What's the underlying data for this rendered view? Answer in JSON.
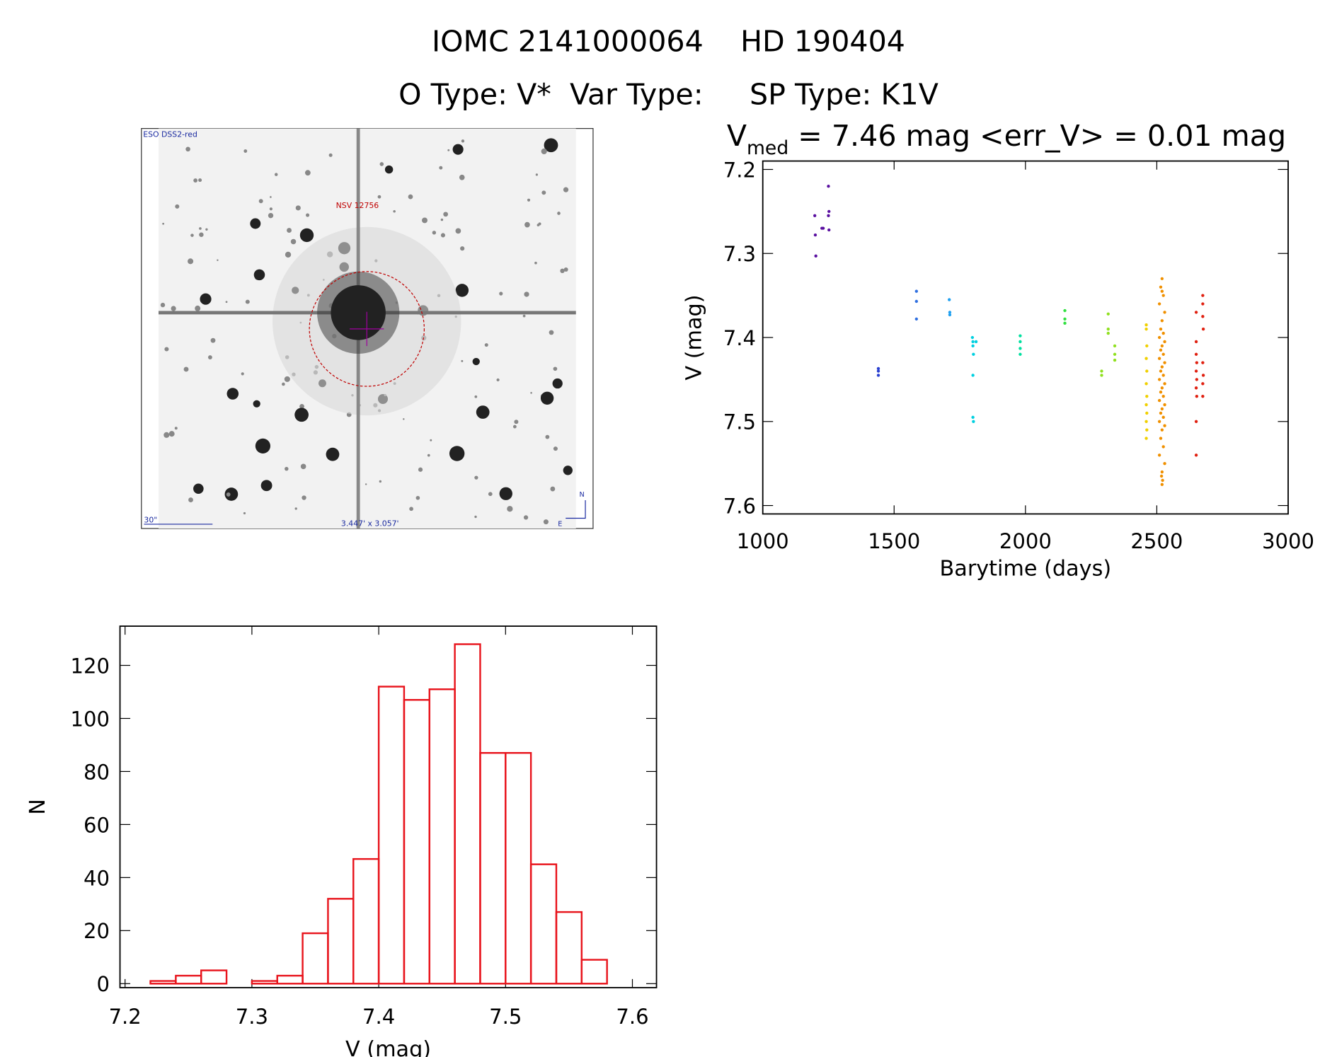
{
  "header": {
    "title": "IOMC 2141000064    HD 190404",
    "subtitle": "O Type: V*  Var Type:     SP Type: K1V"
  },
  "image": {
    "survey": "ESO DSS2-red",
    "target": "NSV 12756",
    "scale": "30\"",
    "size": "3.447' x 3.057'",
    "north": "N",
    "east": "E"
  },
  "chart_data": [
    {
      "type": "scatter",
      "title": {
        "main": "V",
        "subscript": "med",
        "rest": " = 7.46 mag <err_V> = 0.01 mag"
      },
      "xlabel": "Barytime (days)",
      "ylabel": "V (mag)",
      "xlim": [
        1000,
        3000
      ],
      "ylim": [
        7.19,
        7.61
      ],
      "y_inverted": true,
      "xticks": [
        1000,
        1500,
        2000,
        2500,
        3000
      ],
      "yticks": [
        7.2,
        7.3,
        7.4,
        7.5,
        7.6
      ],
      "series": [
        {
          "color": "#5a10a0",
          "x": [
            1198,
            1200,
            1202,
            1225,
            1230,
            1250,
            1252,
            1250,
            1252
          ],
          "y": [
            7.255,
            7.278,
            7.303,
            7.27,
            7.27,
            7.22,
            7.25,
            7.255,
            7.272
          ]
        },
        {
          "color": "#2a40d0",
          "x": [
            1440,
            1440,
            1440
          ],
          "y": [
            7.437,
            7.44,
            7.445
          ]
        },
        {
          "color": "#3070e0",
          "x": [
            1585,
            1585,
            1585
          ],
          "y": [
            7.345,
            7.357,
            7.378
          ]
        },
        {
          "color": "#20a0f0",
          "x": [
            1710,
            1712,
            1712
          ],
          "y": [
            7.355,
            7.37,
            7.373
          ]
        },
        {
          "color": "#00d0e0",
          "x": [
            1798,
            1800,
            1800,
            1802,
            1800,
            1800,
            1802,
            1812
          ],
          "y": [
            7.4,
            7.405,
            7.41,
            7.42,
            7.445,
            7.495,
            7.5,
            7.405
          ]
        },
        {
          "color": "#00e0a0",
          "x": [
            1980,
            1980,
            1980,
            1980
          ],
          "y": [
            7.398,
            7.405,
            7.413,
            7.42
          ]
        },
        {
          "color": "#30e040",
          "x": [
            2150,
            2150,
            2150
          ],
          "y": [
            7.368,
            7.378,
            7.383
          ]
        },
        {
          "color": "#90e020",
          "x": [
            2290,
            2290,
            2315,
            2315,
            2315,
            2340,
            2340,
            2340
          ],
          "y": [
            7.44,
            7.445,
            7.372,
            7.39,
            7.395,
            7.41,
            7.42,
            7.427
          ]
        },
        {
          "color": "#f0d000",
          "x": [
            2460,
            2460,
            2462,
            2460,
            2462,
            2460,
            2462,
            2460,
            2462,
            2460,
            2462,
            2460
          ],
          "y": [
            7.385,
            7.39,
            7.41,
            7.425,
            7.44,
            7.455,
            7.47,
            7.48,
            7.49,
            7.5,
            7.51,
            7.52
          ]
        },
        {
          "color": "#f09000",
          "x": [
            2520,
            2515,
            2525,
            2510,
            2530,
            2520,
            2515,
            2525,
            2510,
            2530,
            2520,
            2515,
            2525,
            2510,
            2530,
            2520,
            2515,
            2525,
            2510,
            2530,
            2520,
            2515,
            2525,
            2510,
            2530,
            2520,
            2515,
            2525,
            2510,
            2530,
            2520,
            2515,
            2525,
            2510,
            2530,
            2520,
            2518,
            2522,
            2520,
            2520
          ],
          "y": [
            7.33,
            7.34,
            7.35,
            7.36,
            7.37,
            7.38,
            7.39,
            7.395,
            7.4,
            7.405,
            7.41,
            7.415,
            7.42,
            7.425,
            7.43,
            7.435,
            7.44,
            7.445,
            7.45,
            7.455,
            7.46,
            7.465,
            7.47,
            7.475,
            7.48,
            7.485,
            7.49,
            7.495,
            7.5,
            7.505,
            7.51,
            7.52,
            7.53,
            7.54,
            7.55,
            7.56,
            7.565,
            7.57,
            7.575,
            7.345
          ]
        },
        {
          "color": "#e02010",
          "x": [
            2650,
            2650,
            2650,
            2652,
            2650,
            2652,
            2650,
            2652,
            2650,
            2650,
            2675,
            2675,
            2675,
            2677,
            2675,
            2677,
            2675,
            2675
          ],
          "y": [
            7.37,
            7.405,
            7.42,
            7.43,
            7.44,
            7.45,
            7.46,
            7.47,
            7.5,
            7.54,
            7.35,
            7.36,
            7.375,
            7.39,
            7.43,
            7.445,
            7.455,
            7.47
          ]
        }
      ]
    },
    {
      "type": "histogram",
      "xlabel": "V (mag)",
      "ylabel": "N",
      "color": "#e8141c",
      "bins": [
        7.22,
        7.24,
        7.26,
        7.28,
        7.3,
        7.32,
        7.34,
        7.36,
        7.38,
        7.4,
        7.42,
        7.44,
        7.46,
        7.48,
        7.5,
        7.52,
        7.54,
        7.56,
        7.58
      ],
      "counts": [
        1,
        3,
        5,
        0,
        1,
        3,
        19,
        32,
        47,
        112,
        107,
        111,
        128,
        87,
        87,
        45,
        27,
        9
      ],
      "xlim": [
        7.196,
        7.619
      ],
      "ylim": [
        -1.5,
        134.8
      ],
      "xticks": [
        7.2,
        7.3,
        7.4,
        7.5,
        7.6
      ],
      "yticks": [
        0,
        20,
        40,
        60,
        80,
        100,
        120
      ]
    }
  ]
}
